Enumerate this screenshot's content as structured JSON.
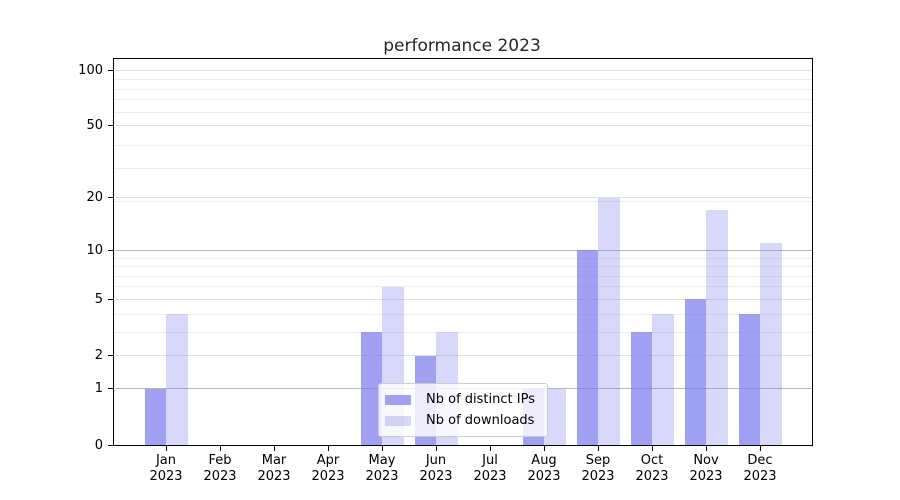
{
  "chart_data": {
    "type": "bar",
    "title": "performance 2023",
    "categories": [
      "Jan",
      "Feb",
      "Mar",
      "Apr",
      "May",
      "Jun",
      "Jul",
      "Aug",
      "Sep",
      "Oct",
      "Nov",
      "Dec"
    ],
    "x_sublabel": "2023",
    "series": [
      {
        "name": "Nb of distinct IPs",
        "color": "rgba(125,125,238,0.72)",
        "values": [
          1,
          0,
          0,
          0,
          3,
          2,
          0,
          1,
          10,
          3,
          5,
          4
        ]
      },
      {
        "name": "Nb of downloads",
        "color": "rgba(125,125,238,0.30)",
        "values": [
          4,
          0,
          0,
          0,
          6,
          3,
          0,
          1,
          20,
          4,
          17,
          11
        ]
      }
    ],
    "yscale": "log10(1+value)",
    "ylim": [
      0,
      115
    ],
    "yticks": [
      0,
      1,
      2,
      5,
      10,
      20,
      50,
      100
    ],
    "emphasized_gridlines": [
      1,
      10
    ],
    "minor_gridlines": [
      3,
      4,
      6,
      7,
      8,
      9,
      19,
      29,
      39,
      59,
      69,
      79,
      89
    ],
    "grid": "horizontal, major and minor",
    "legend_position": "lower center",
    "xlabel": "",
    "ylabel": ""
  },
  "colors": {
    "bar_base": "#7d7dee",
    "grid_minor": "#eeeeee",
    "grid_mid": "#e0e0e0",
    "grid_emph": "#b6b6b6",
    "spine": "#000000",
    "legend_border": "#cccccc"
  }
}
